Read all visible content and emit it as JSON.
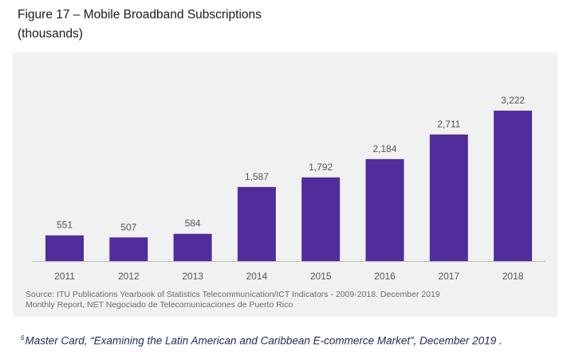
{
  "figure": {
    "title_line1": "Figure 17 – Mobile Broadband Subscriptions",
    "title_line2": "(thousands)"
  },
  "chart_data": {
    "type": "bar",
    "categories": [
      "2011",
      "2012",
      "2013",
      "2014",
      "2015",
      "2016",
      "2017",
      "2018"
    ],
    "values": [
      551,
      507,
      584,
      1587,
      1792,
      2184,
      2711,
      3222
    ],
    "value_labels": [
      "551",
      "507",
      "584",
      "1,587",
      "1,792",
      "2,184",
      "2,711",
      "3,222"
    ],
    "title": "Figure 17 – Mobile Broadband Subscriptions (thousands)",
    "xlabel": "",
    "ylabel": "",
    "ylim": [
      0,
      3222
    ],
    "grid": false,
    "legend": "none",
    "bar_color": "#512d9b"
  },
  "source": {
    "line1": "Source: ITU Publications Yearbook of Statistics Telecommunication/ICT Indicators - 2009-2018. December 2019",
    "line2": "Monthly Report, NET Negociado de Telecomunicaciones de Puerto Rico"
  },
  "footnote": {
    "marker": "6",
    "text": "Master Card, “Examining the Latin American and Caribbean E-commerce Market”, December 2019 ."
  }
}
